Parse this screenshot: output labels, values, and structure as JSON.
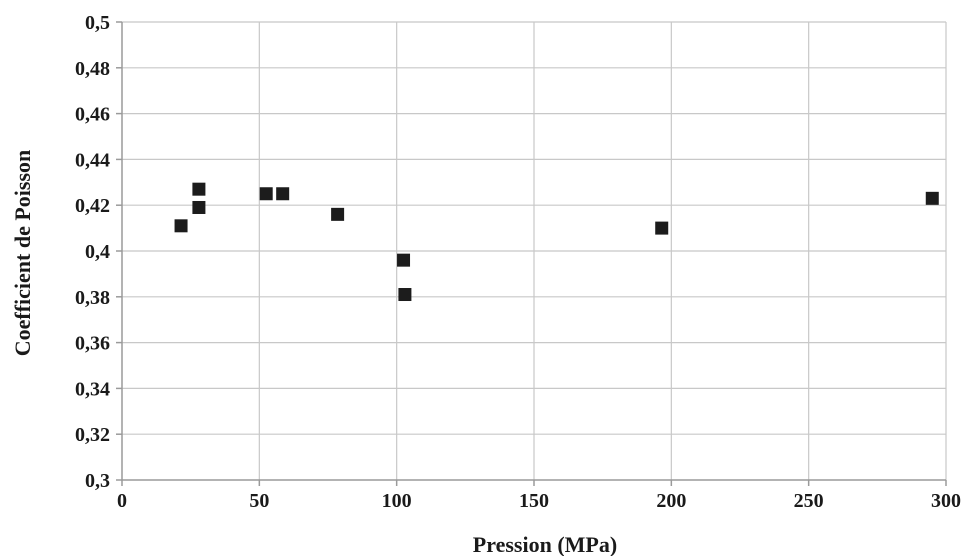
{
  "chart_data": {
    "type": "scatter",
    "xlabel": "Pression (MPa)",
    "ylabel": "Coefficient de Poisson",
    "xlim": [
      0,
      300
    ],
    "ylim": [
      0.3,
      0.5
    ],
    "x_ticks": [
      0,
      50,
      100,
      150,
      200,
      250,
      300
    ],
    "y_ticks": [
      0.3,
      0.32,
      0.34,
      0.36,
      0.38,
      0.4,
      0.42,
      0.44,
      0.46,
      0.48,
      0.5
    ],
    "x_tick_labels": [
      "0",
      "50",
      "100",
      "150",
      "200",
      "250",
      "300"
    ],
    "y_tick_labels": [
      "0,3",
      "0,32",
      "0,34",
      "0,36",
      "0,38",
      "0,4",
      "0,42",
      "0,44",
      "0,46",
      "0,48",
      "0,5"
    ],
    "grid": true,
    "marker": "square",
    "marker_color": "#1c1c1c",
    "points": [
      {
        "x": 21.5,
        "y": 0.411
      },
      {
        "x": 28,
        "y": 0.427
      },
      {
        "x": 28,
        "y": 0.419
      },
      {
        "x": 52.5,
        "y": 0.425
      },
      {
        "x": 58.5,
        "y": 0.425
      },
      {
        "x": 78.5,
        "y": 0.416
      },
      {
        "x": 102.5,
        "y": 0.396
      },
      {
        "x": 103,
        "y": 0.381
      },
      {
        "x": 196.5,
        "y": 0.41
      },
      {
        "x": 295,
        "y": 0.423
      }
    ]
  }
}
